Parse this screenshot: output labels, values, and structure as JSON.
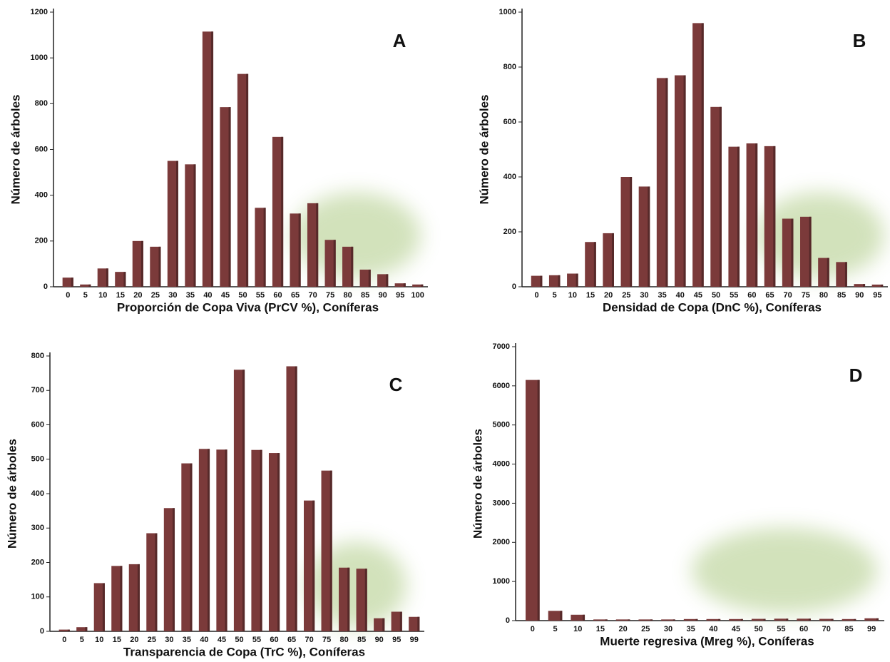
{
  "chart_data": [
    {
      "type": "bar",
      "annotation": "A",
      "ylabel": "Número de árboles",
      "xlabel": "Proporción de Copa Viva  (PrCV %), Coníferas",
      "categories": [
        "0",
        "5",
        "10",
        "15",
        "20",
        "25",
        "30",
        "35",
        "40",
        "45",
        "50",
        "55",
        "60",
        "65",
        "70",
        "75",
        "80",
        "85",
        "90",
        "95",
        "100"
      ],
      "values": [
        40,
        10,
        80,
        65,
        200,
        175,
        550,
        535,
        1115,
        785,
        930,
        345,
        655,
        320,
        365,
        205,
        175,
        75,
        55,
        15,
        10
      ],
      "color": "#7b3a3a",
      "ylim": [
        0,
        1200
      ],
      "yticks": [
        0,
        200,
        400,
        600,
        800,
        1000,
        1200
      ]
    },
    {
      "type": "bar",
      "annotation": "B",
      "ylabel": "Número de árboles",
      "xlabel": "Densidad de Copa  (DnC %), Coníferas",
      "categories": [
        "0",
        "5",
        "10",
        "15",
        "20",
        "25",
        "30",
        "35",
        "40",
        "45",
        "50",
        "55",
        "60",
        "65",
        "70",
        "75",
        "80",
        "85",
        "90",
        "95"
      ],
      "values": [
        40,
        42,
        48,
        163,
        195,
        400,
        365,
        760,
        770,
        960,
        655,
        510,
        522,
        512,
        248,
        255,
        105,
        90,
        10,
        8
      ],
      "color": "#7b3a3a",
      "ylim": [
        0,
        1000
      ],
      "yticks": [
        0,
        200,
        400,
        600,
        800,
        1000
      ]
    },
    {
      "type": "bar",
      "annotation": "C",
      "ylabel": "Número de árboles",
      "xlabel": "Transparencia de Copa  (TrC %), Coníferas",
      "categories": [
        "0",
        "5",
        "10",
        "15",
        "20",
        "25",
        "30",
        "35",
        "40",
        "45",
        "50",
        "55",
        "60",
        "65",
        "70",
        "75",
        "80",
        "85",
        "90",
        "95",
        "99"
      ],
      "values": [
        5,
        12,
        140,
        190,
        195,
        285,
        358,
        488,
        530,
        528,
        760,
        527,
        518,
        770,
        380,
        467,
        185,
        182,
        38,
        57,
        42
      ],
      "color": "#7b3a3a",
      "ylim": [
        0,
        800
      ],
      "yticks": [
        0,
        100,
        200,
        300,
        400,
        500,
        600,
        700,
        800
      ]
    },
    {
      "type": "bar",
      "annotation": "D",
      "ylabel": "Número de árboles",
      "xlabel": "Muerte regresiva  (Mreg %), Coníferas",
      "categories": [
        "0",
        "5",
        "10",
        "15",
        "20",
        "25",
        "30",
        "35",
        "40",
        "45",
        "50",
        "55",
        "60",
        "70",
        "85",
        "99"
      ],
      "values": [
        6150,
        250,
        150,
        30,
        30,
        30,
        30,
        40,
        40,
        40,
        45,
        50,
        50,
        45,
        40,
        60
      ],
      "color": "#7b3a3a",
      "ylim": [
        0,
        7000
      ],
      "yticks": [
        0,
        1000,
        2000,
        3000,
        4000,
        5000,
        6000,
        7000
      ]
    }
  ]
}
